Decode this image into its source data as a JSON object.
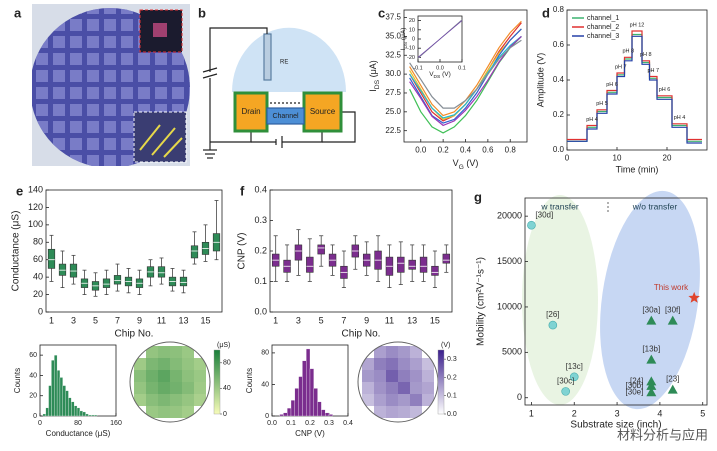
{
  "figure_a": {
    "panel": "a"
  },
  "figure_b": {
    "panel": "b",
    "labels": [
      "RE",
      "Drain",
      "Channel",
      "Source"
    ]
  },
  "watermark": "材料分析与应用",
  "chart_data": [
    {
      "type": "line",
      "panel": "c",
      "xlabel": [
        "V",
        "G",
        " (V)"
      ],
      "ylabel": [
        "I",
        "DS",
        " (μA)"
      ],
      "x": [
        -0.1,
        0,
        0.1,
        0.2,
        0.3,
        0.4,
        0.5,
        0.6,
        0.7,
        0.8,
        0.9
      ],
      "xlim": [
        -0.15,
        0.95
      ],
      "ylim": [
        21,
        38.5
      ],
      "xticks": [
        {
          "value": 0,
          "label": "0.0"
        },
        0.2,
        0.4,
        0.6,
        0.8
      ],
      "yticks": [
        22.5,
        {
          "value": 25,
          "label": "25.0"
        },
        27.5,
        {
          "value": 30,
          "label": "30.0"
        },
        32.5,
        {
          "value": 35,
          "label": "35.0"
        },
        37.5
      ],
      "series": [
        {
          "color": "#f28c28",
          "values": [
            31,
            28.5,
            26,
            24.5,
            25,
            26.5,
            28.5,
            31,
            33.5,
            35.5,
            37
          ]
        },
        {
          "color": "#e03131",
          "values": [
            30,
            27.5,
            25,
            23.8,
            24.5,
            26,
            28,
            30.5,
            33,
            35,
            36.8
          ]
        },
        {
          "color": "#e6c229",
          "values": [
            30.5,
            28,
            25.5,
            24,
            24.5,
            26,
            28,
            30.5,
            32.8,
            34.5,
            36
          ]
        },
        {
          "color": "#40c057",
          "values": [
            28,
            25,
            23,
            22.2,
            23,
            24.5,
            26.5,
            29,
            31.5,
            33.5,
            35
          ]
        },
        {
          "color": "#2f5fd0",
          "values": [
            29.5,
            27,
            24.5,
            23.5,
            24,
            25.5,
            27.5,
            30,
            32.5,
            34.5,
            36
          ]
        },
        {
          "color": "#22b8cf",
          "values": [
            30,
            27.8,
            25.5,
            24.2,
            24.6,
            26,
            28,
            30.2,
            32.2,
            33.8,
            35
          ]
        },
        {
          "color": "#9c36b5",
          "values": [
            29,
            26.8,
            24.4,
            23.2,
            23.8,
            25.2,
            27,
            29.2,
            31.6,
            33.6,
            35
          ]
        },
        {
          "color": "#868e96",
          "values": [
            31.5,
            29.3,
            27,
            25.5,
            25.5,
            26.5,
            28,
            30,
            32,
            33.5,
            34.5
          ]
        }
      ]
    },
    {
      "type": "line",
      "xlabel": [
        "V",
        "DS",
        " (V)"
      ],
      "ylabel": [
        "I",
        "DS",
        " (μA)"
      ],
      "x": [
        -0.1,
        0.1
      ],
      "xlim": [
        -0.1,
        0.1
      ],
      "ylim": [
        -25,
        25
      ],
      "xticks": [
        -0.1,
        {
          "value": 0,
          "label": "0.0"
        },
        0.1
      ],
      "yticks": [
        -20,
        -10,
        0,
        10,
        20
      ],
      "series": [
        {
          "color": "#868e96",
          "values": [
            -21,
            21
          ]
        },
        {
          "color": "#7048a8",
          "values": [
            -20,
            20
          ]
        }
      ]
    },
    {
      "type": "line",
      "panel": "d",
      "xlabel": "Time (min)",
      "ylabel": "Amplitude (V)",
      "x": [
        0,
        4,
        4,
        6,
        6,
        8,
        8,
        10,
        10,
        11.5,
        11.5,
        13,
        13,
        15,
        15,
        16.5,
        16.5,
        18,
        18,
        21,
        21,
        24,
        24,
        27
      ],
      "xlim": [
        0,
        28
      ],
      "ylim": [
        0,
        0.8
      ],
      "xticks": [
        0,
        10,
        20
      ],
      "yticks": [
        {
          "value": 0,
          "label": "0.0"
        },
        0.2,
        0.4,
        0.6,
        0.8
      ],
      "legend": "upper left",
      "annotations": [
        "pH 4",
        "pH 5",
        "pH 6",
        "pH 7",
        "pH 8",
        "pH 12",
        "pH 8",
        "pH 7",
        "pH 6",
        "pH 4"
      ],
      "series": [
        {
          "name": "channel_1",
          "color": "#3cb371",
          "values": [
            0.05,
            0.05,
            0.13,
            0.13,
            0.22,
            0.22,
            0.33,
            0.33,
            0.43,
            0.43,
            0.52,
            0.52,
            0.66,
            0.66,
            0.5,
            0.5,
            0.41,
            0.41,
            0.3,
            0.3,
            0.14,
            0.14,
            0.05,
            0.05
          ]
        },
        {
          "name": "channel_2",
          "color": "#e03131",
          "values": [
            0.06,
            0.06,
            0.14,
            0.14,
            0.23,
            0.23,
            0.34,
            0.34,
            0.44,
            0.44,
            0.53,
            0.53,
            0.68,
            0.68,
            0.51,
            0.51,
            0.42,
            0.42,
            0.31,
            0.31,
            0.15,
            0.15,
            0.06,
            0.06
          ]
        },
        {
          "name": "channel_3",
          "color": "#2541a8",
          "values": [
            0.05,
            0.05,
            0.12,
            0.12,
            0.21,
            0.21,
            0.32,
            0.32,
            0.42,
            0.42,
            0.51,
            0.51,
            0.65,
            0.65,
            0.49,
            0.49,
            0.4,
            0.4,
            0.29,
            0.29,
            0.13,
            0.13,
            0.04,
            0.04
          ]
        }
      ]
    },
    {
      "type": "box",
      "panel": "e",
      "xlabel": "Chip No.",
      "ylabel": "Conductance (μS)",
      "color": "#2e8b57",
      "ylim": [
        0,
        140
      ],
      "yticks": [
        0,
        20,
        40,
        60,
        80,
        100,
        120,
        140
      ],
      "categories": [
        "1",
        null,
        "3",
        null,
        "5",
        null,
        "7",
        null,
        "9",
        null,
        "11",
        null,
        "13",
        null,
        "15",
        null
      ],
      "boxes": [
        {
          "min": 35,
          "q1": 50,
          "median": 60,
          "q3": 72,
          "max": 88
        },
        {
          "min": 28,
          "q1": 42,
          "median": 48,
          "q3": 55,
          "max": 70
        },
        {
          "min": 32,
          "q1": 40,
          "median": 47,
          "q3": 55,
          "max": 65
        },
        {
          "min": 20,
          "q1": 28,
          "median": 33,
          "q3": 38,
          "max": 48
        },
        {
          "min": 18,
          "q1": 25,
          "median": 30,
          "q3": 35,
          "max": 45
        },
        {
          "min": 20,
          "q1": 28,
          "median": 32,
          "q3": 38,
          "max": 48
        },
        {
          "min": 24,
          "q1": 32,
          "median": 36,
          "q3": 42,
          "max": 55
        },
        {
          "min": 22,
          "q1": 30,
          "median": 35,
          "q3": 40,
          "max": 50
        },
        {
          "min": 20,
          "q1": 28,
          "median": 33,
          "q3": 38,
          "max": 48
        },
        {
          "min": 30,
          "q1": 40,
          "median": 46,
          "q3": 52,
          "max": 60
        },
        {
          "min": 32,
          "q1": 40,
          "median": 45,
          "q3": 52,
          "max": 62
        },
        {
          "min": 24,
          "q1": 30,
          "median": 35,
          "q3": 40,
          "max": 50
        },
        {
          "min": 22,
          "q1": 30,
          "median": 34,
          "q3": 40,
          "max": 48
        },
        {
          "min": 55,
          "q1": 62,
          "median": 70,
          "q3": 76,
          "max": 92
        },
        {
          "min": 58,
          "q1": 66,
          "median": 73,
          "q3": 80,
          "max": 100
        },
        {
          "min": 60,
          "q1": 70,
          "median": 80,
          "q3": 90,
          "max": 128
        }
      ]
    },
    {
      "type": "histogram",
      "xlabel": "Conductance (μS)",
      "ylabel": "Counts",
      "color": "#2e8b57",
      "bins": [
        0,
        6,
        12,
        18,
        24,
        30,
        36,
        42,
        48,
        54,
        60,
        66,
        72,
        78,
        84,
        90,
        96,
        102,
        108,
        114,
        120
      ],
      "counts": [
        0,
        2,
        8,
        30,
        55,
        60,
        45,
        38,
        30,
        25,
        18,
        14,
        10,
        8,
        5,
        4,
        2,
        1,
        1,
        1
      ],
      "xlim": [
        0,
        160
      ],
      "ylim": [
        0,
        70
      ],
      "xticks": [
        0,
        80,
        160
      ],
      "yticks": [
        0,
        20,
        40,
        60
      ]
    },
    {
      "type": "heatmap",
      "unit": "(μS)",
      "colormap": [
        "#f7fcb9",
        "#1a7f3a"
      ],
      "clim": [
        0,
        100
      ],
      "cbticks": [
        0,
        40,
        80
      ],
      "values": [
        [
          null,
          45,
          50,
          48,
          42,
          null
        ],
        [
          40,
          55,
          60,
          52,
          45,
          38
        ],
        [
          50,
          62,
          70,
          58,
          48,
          42
        ],
        [
          45,
          58,
          65,
          60,
          52,
          40
        ],
        [
          38,
          50,
          55,
          50,
          44,
          35
        ],
        [
          null,
          42,
          46,
          44,
          38,
          null
        ]
      ]
    },
    {
      "type": "box",
      "panel": "f",
      "xlabel": "Chip No.",
      "ylabel": "CNP (V)",
      "color": "#7b2d8e",
      "ylim": [
        0,
        0.4
      ],
      "yticks": [
        {
          "value": 0,
          "label": "0.0"
        },
        0.1,
        0.2,
        0.3,
        0.4
      ],
      "categories": [
        "1",
        null,
        "3",
        null,
        "5",
        null,
        "7",
        null,
        "9",
        null,
        "11",
        null,
        "13",
        null,
        "15",
        null
      ],
      "boxes": [
        {
          "min": 0.1,
          "q1": 0.15,
          "median": 0.17,
          "q3": 0.19,
          "max": 0.25
        },
        {
          "min": 0.1,
          "q1": 0.13,
          "median": 0.15,
          "q3": 0.17,
          "max": 0.22
        },
        {
          "min": 0.12,
          "q1": 0.17,
          "median": 0.2,
          "q3": 0.22,
          "max": 0.27
        },
        {
          "min": 0.1,
          "q1": 0.13,
          "median": 0.15,
          "q3": 0.18,
          "max": 0.24
        },
        {
          "min": 0.15,
          "q1": 0.19,
          "median": 0.21,
          "q3": 0.22,
          "max": 0.25
        },
        {
          "min": 0.12,
          "q1": 0.15,
          "median": 0.17,
          "q3": 0.19,
          "max": 0.22
        },
        {
          "min": 0.08,
          "q1": 0.11,
          "median": 0.13,
          "q3": 0.15,
          "max": 0.2
        },
        {
          "min": 0.14,
          "q1": 0.18,
          "median": 0.2,
          "q3": 0.22,
          "max": 0.25
        },
        {
          "min": 0.12,
          "q1": 0.15,
          "median": 0.17,
          "q3": 0.19,
          "max": 0.23
        },
        {
          "min": 0.1,
          "q1": 0.14,
          "median": 0.17,
          "q3": 0.2,
          "max": 0.25
        },
        {
          "min": 0.08,
          "q1": 0.12,
          "median": 0.15,
          "q3": 0.18,
          "max": 0.22
        },
        {
          "min": 0.09,
          "q1": 0.13,
          "median": 0.16,
          "q3": 0.18,
          "max": 0.23
        },
        {
          "min": 0.1,
          "q1": 0.14,
          "median": 0.15,
          "q3": 0.17,
          "max": 0.22
        },
        {
          "min": 0.1,
          "q1": 0.13,
          "median": 0.15,
          "q3": 0.18,
          "max": 0.22
        },
        {
          "min": 0.08,
          "q1": 0.12,
          "median": 0.13,
          "q3": 0.15,
          "max": 0.2
        },
        {
          "min": 0.13,
          "q1": 0.16,
          "median": 0.17,
          "q3": 0.19,
          "max": 0.22
        }
      ]
    },
    {
      "type": "histogram",
      "xlabel": "CNP (V)",
      "ylabel": "Counts",
      "color": "#7b2d8e",
      "bins": [
        0.04,
        0.06,
        0.08,
        0.1,
        0.12,
        0.14,
        0.16,
        0.18,
        0.2,
        0.22,
        0.24,
        0.26,
        0.28,
        0.3,
        0.32
      ],
      "counts": [
        2,
        4,
        10,
        20,
        35,
        50,
        70,
        85,
        60,
        35,
        18,
        8,
        4,
        2
      ],
      "xlim": [
        0,
        0.4
      ],
      "ylim": [
        0,
        90
      ],
      "xticks": [
        {
          "value": 0,
          "label": "0.0"
        },
        0.1,
        0.2,
        0.3,
        0.4
      ],
      "yticks": [
        0,
        40,
        80
      ]
    },
    {
      "type": "heatmap",
      "unit": "(V)",
      "colormap": [
        "#ffffff",
        "#3b1f8c"
      ],
      "clim": [
        0,
        0.35
      ],
      "cbticks": [
        {
          "value": 0,
          "label": "0.0"
        },
        0.1,
        0.2,
        0.3
      ],
      "values": [
        [
          null,
          0.15,
          0.18,
          0.16,
          0.12,
          null
        ],
        [
          0.14,
          0.2,
          0.22,
          0.18,
          0.15,
          0.1
        ],
        [
          0.16,
          0.18,
          0.25,
          0.2,
          0.17,
          0.12
        ],
        [
          0.12,
          0.17,
          0.2,
          0.24,
          0.16,
          0.14
        ],
        [
          0.1,
          0.15,
          0.18,
          0.16,
          0.2,
          0.12
        ],
        [
          null,
          0.12,
          0.14,
          0.13,
          0.11,
          null
        ]
      ]
    },
    {
      "type": "scatter",
      "panel": "g",
      "xlabel": "Substrate size (inch)",
      "ylabel": "Mobility (cm²V⁻¹s⁻¹)",
      "xlim": [
        0.85,
        5.1
      ],
      "ylim": [
        -800,
        22000
      ],
      "xticks": [
        1,
        2,
        3,
        4,
        5
      ],
      "yticks": [
        0,
        5000,
        10000,
        15000,
        20000
      ],
      "series": [
        {
          "name": "w transfer",
          "color": "#7fd3d3",
          "marker": "circle",
          "x": [
            1.0,
            1.5,
            2.0,
            1.8
          ],
          "values": [
            19000,
            8000,
            2300,
            700
          ],
          "point_labels": [
            "[30d]",
            "[26]",
            "[13c]",
            "[30c]"
          ]
        },
        {
          "name": "w/o transfer",
          "color": "#2e8b57",
          "marker": "triangle",
          "x": [
            3.8,
            4.3,
            3.8,
            3.8,
            3.8,
            3.8,
            4.3
          ],
          "values": [
            8500,
            8500,
            4200,
            1800,
            1300,
            600,
            900
          ],
          "point_labels": [
            "[30a]",
            "[30f]",
            "[13b]",
            "[24]",
            "[30b]",
            "[30e]",
            "[23]"
          ]
        },
        {
          "name": "This work",
          "color": "#e0442c",
          "marker": "star",
          "x": [
            4.8
          ],
          "values": [
            11000
          ]
        }
      ]
    }
  ]
}
